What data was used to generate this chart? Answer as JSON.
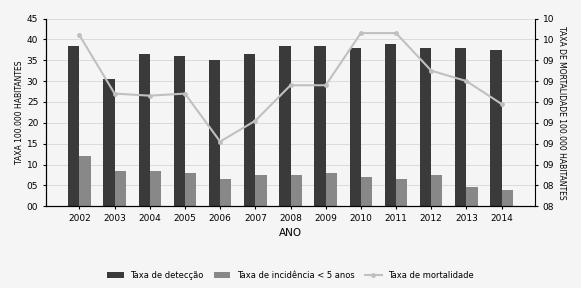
{
  "years": [
    2002,
    2003,
    2004,
    2005,
    2006,
    2007,
    2008,
    2009,
    2010,
    2011,
    2012,
    2013,
    2014
  ],
  "taxa_deteccao": [
    38.5,
    30.5,
    36.5,
    36.0,
    35.0,
    36.5,
    38.5,
    38.5,
    38.0,
    39.0,
    38.0,
    38.0,
    37.5
  ],
  "taxa_incidencia": [
    12.0,
    8.5,
    8.5,
    8.0,
    6.5,
    7.5,
    7.5,
    8.0,
    7.0,
    6.5,
    7.5,
    4.5,
    4.0
  ],
  "taxa_mortalidade": [
    41.0,
    27.0,
    26.5,
    27.0,
    15.5,
    20.5,
    29.0,
    29.0,
    41.5,
    41.5,
    32.5,
    30.0,
    24.5
  ],
  "bar_color_deteccao": "#3a3a3a",
  "bar_color_incidencia": "#888888",
  "line_color_mortalidade": "#c0c0c0",
  "ylabel_left": "TAXA 100.000 HABITANTES",
  "ylabel_right": "TAXA DE MORTALIDADE 100.000 HABITANTES",
  "xlabel": "ANO",
  "ylim_left": [
    0,
    45
  ],
  "yticks_left": [
    0,
    5,
    10,
    15,
    20,
    25,
    30,
    35,
    40,
    45
  ],
  "yticklabels_left": [
    "00",
    "05",
    "10",
    "15",
    "20",
    "25",
    "30",
    "35",
    "40",
    "45"
  ],
  "ylim_right": [
    0,
    45
  ],
  "yticks_right": [
    0,
    5,
    10,
    15,
    20,
    25,
    30,
    35,
    40,
    45
  ],
  "yticklabels_right": [
    "08",
    "08",
    "09",
    "09",
    "09",
    "09",
    "09",
    "09",
    "10",
    "10"
  ],
  "legend_labels": [
    "Taxa de detecção",
    "Taxa de incidência < 5 anos",
    "Taxa de mortalidade"
  ],
  "background_color": "#f5f5f5",
  "grid_color": "#d0d0d0"
}
